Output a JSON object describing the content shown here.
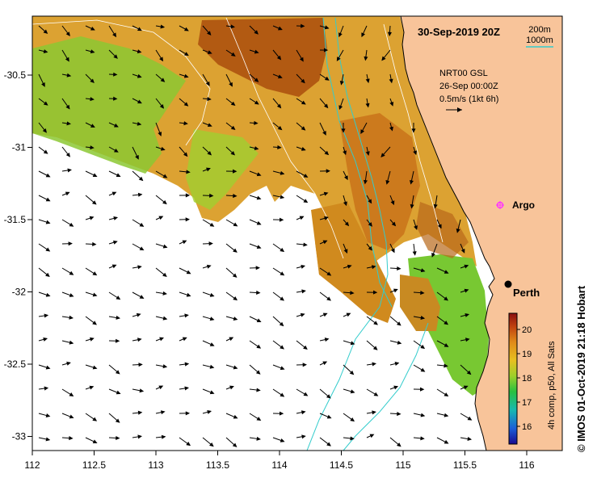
{
  "map": {
    "timestamp": "30-Sep-2019 20Z",
    "legend_200m": "200m",
    "legend_1000m": "1000m",
    "product_lines": [
      "NRT00 GSL",
      "26-Sep 00:00Z",
      "0.5m/s (1kt 6h)"
    ],
    "argo_label": "Argo",
    "city_label": "Perth",
    "x_ticks": [
      "112",
      "112.5",
      "113",
      "113.5",
      "114",
      "114.5",
      "115",
      "115.5",
      "116"
    ],
    "y_ticks": [
      "-30.5",
      "-31",
      "-31.5",
      "-32",
      "-32.5",
      "-33"
    ],
    "colorbar_ticks": [
      "20",
      "19",
      "18",
      "17",
      "16"
    ],
    "colorbar_label": "4h comp, p50, All Sats",
    "credit": "© IMOS 01-Oct-2019 21:18 Hobart",
    "colors": {
      "land": "#f8c49a",
      "coast": "#000000",
      "isobath_200m": "#ffffff",
      "isobath_1000m": "#33cccc",
      "argo": "#ff33ff",
      "sst_warm": "#b8580c",
      "sst_mid": "#e0a030",
      "sst_cool": "#6cc830"
    }
  }
}
